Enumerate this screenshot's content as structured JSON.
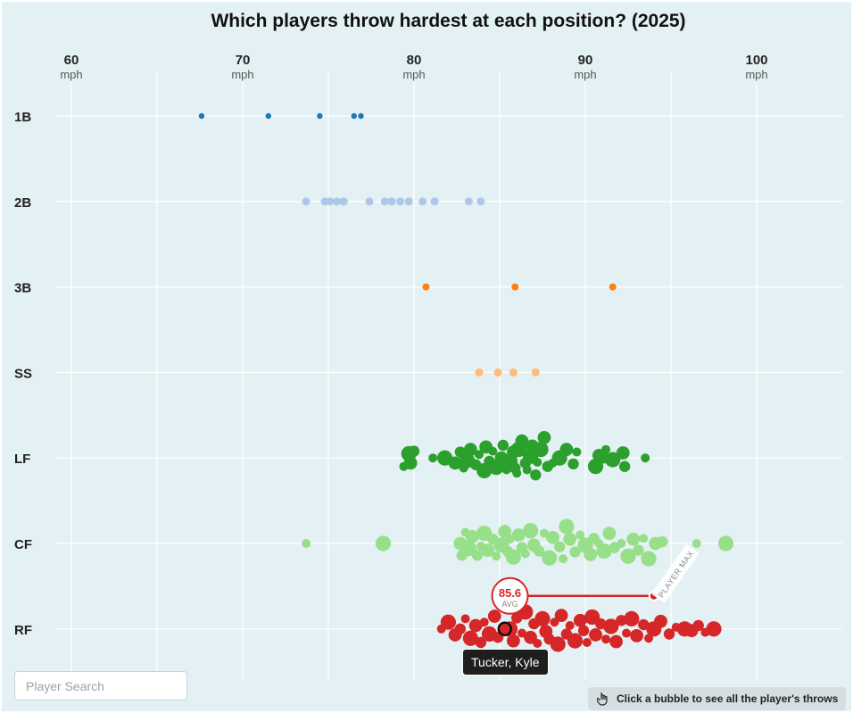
{
  "title": "Which players throw hardest at each position? (2025)",
  "axis_unit": "mph",
  "search": {
    "placeholder": "Player Search"
  },
  "hint": {
    "text": "Click a bubble to see all the player's throws"
  },
  "tooltip": {
    "player": "Tucker, Kyle"
  },
  "avg_badge": {
    "value": "85.6",
    "label": "AVG"
  },
  "max_label": "PLAYER MAX",
  "chart_data": {
    "type": "scatter",
    "subtype": "beeswarm",
    "title": "Which players throw hardest at each position? (2025)",
    "x_ticks": [
      {
        "value": 60,
        "label": "60"
      },
      {
        "value": 70,
        "label": "70"
      },
      {
        "value": 80,
        "label": "80"
      },
      {
        "value": 90,
        "label": "90"
      },
      {
        "value": 100,
        "label": "100"
      }
    ],
    "xlim": [
      59,
      104
    ],
    "categories": [
      "1B",
      "2B",
      "3B",
      "SS",
      "LF",
      "CF",
      "RF"
    ],
    "colors": {
      "1B": "#1f77b4",
      "2B": "#aec7e8",
      "3B": "#ff7f0e",
      "SS": "#ffbb78",
      "LF": "#2ca02c",
      "CF": "#98df8a",
      "RF": "#d62728"
    },
    "series": [
      {
        "name": "1B",
        "values": [
          67.6,
          71.5,
          74.5,
          76.5,
          76.9
        ]
      },
      {
        "name": "2B",
        "values": [
          73.7,
          74.8,
          75.1,
          75.5,
          75.9,
          75.9,
          77.4,
          78.3,
          78.7,
          79.2,
          79.7,
          80.5,
          81.2,
          83.2,
          83.9
        ]
      },
      {
        "name": "3B",
        "values": [
          80.7,
          85.9,
          91.6
        ]
      },
      {
        "name": "SS",
        "values": [
          83.8,
          84.9,
          85.8,
          87.1
        ]
      },
      {
        "name": "LF",
        "values": [
          79.4,
          79.7,
          79.8,
          80.0,
          81.1,
          81.8,
          82.4,
          82.7,
          82.9,
          83.1,
          83.3,
          83.6,
          83.8,
          84.1,
          84.2,
          84.4,
          84.6,
          84.8,
          85.1,
          85.2,
          85.4,
          85.6,
          85.8,
          85.9,
          86.0,
          86.1,
          86.3,
          86.5,
          86.6,
          86.8,
          86.9,
          87.1,
          87.2,
          87.4,
          87.6,
          87.8,
          88.1,
          88.5,
          88.9,
          89.3,
          89.5,
          90.6,
          90.8,
          91.1,
          91.2,
          91.6,
          92.2,
          92.3,
          93.5
        ],
        "y_offsets": [
          0.1,
          -0.05,
          0.06,
          -0.08,
          0.0,
          0.0,
          0.06,
          -0.07,
          0.12,
          0.03,
          -0.1,
          0.08,
          -0.04,
          0.15,
          -0.13,
          0.04,
          -0.08,
          0.11,
          0.0,
          -0.15,
          0.14,
          0.04,
          -0.07,
          0.12,
          0.18,
          -0.1,
          -0.2,
          0.06,
          0.14,
          -0.02,
          -0.14,
          0.2,
          0.05,
          -0.1,
          -0.24,
          0.1,
          0.06,
          0.0,
          -0.1,
          0.07,
          -0.07,
          0.1,
          -0.03,
          0.0,
          -0.1,
          0.02,
          -0.06,
          0.1,
          0.0
        ]
      },
      {
        "name": "CF",
        "values": [
          73.7,
          78.2,
          82.7,
          82.8,
          83.0,
          83.2,
          83.4,
          83.7,
          83.9,
          84.1,
          84.3,
          84.6,
          84.8,
          85.1,
          85.3,
          85.5,
          85.6,
          85.8,
          86.1,
          86.3,
          86.5,
          86.8,
          87.0,
          87.3,
          87.6,
          87.9,
          88.1,
          88.5,
          88.7,
          88.9,
          89.1,
          89.4,
          89.7,
          90.0,
          90.3,
          90.5,
          90.8,
          91.1,
          91.4,
          91.7,
          92.1,
          92.5,
          92.8,
          93.1,
          93.4,
          93.7,
          94.1,
          94.5,
          96.5,
          98.2
        ],
        "y_offsets": [
          0.0,
          0.0,
          0.0,
          0.14,
          -0.13,
          0.06,
          -0.08,
          0.14,
          0.03,
          -0.12,
          0.08,
          -0.05,
          0.15,
          0.02,
          -0.14,
          0.1,
          -0.05,
          0.16,
          -0.1,
          0.05,
          0.12,
          -0.15,
          0.02,
          0.09,
          -0.12,
          0.17,
          -0.07,
          0.04,
          0.18,
          -0.2,
          -0.05,
          0.1,
          -0.1,
          0.02,
          0.13,
          -0.06,
          0.0,
          0.09,
          -0.12,
          0.05,
          0.0,
          0.15,
          -0.05,
          0.08,
          -0.06,
          0.18,
          0.0,
          -0.02,
          0.0,
          0.0
        ]
      },
      {
        "name": "RF",
        "values": [
          81.6,
          82.0,
          82.4,
          82.7,
          83.0,
          83.3,
          83.6,
          83.9,
          84.1,
          84.4,
          84.7,
          84.9,
          85.2,
          85.6,
          85.8,
          86.0,
          86.3,
          86.5,
          86.8,
          87.0,
          87.2,
          87.5,
          87.7,
          87.9,
          88.2,
          88.4,
          88.6,
          88.9,
          89.1,
          89.4,
          89.7,
          89.9,
          90.1,
          90.4,
          90.6,
          90.9,
          91.2,
          91.5,
          91.8,
          92.1,
          92.4,
          92.7,
          93.0,
          93.4,
          93.7,
          94.0,
          94.4,
          94.9,
          95.3,
          95.8,
          96.2,
          96.6,
          97.0,
          97.5
        ],
        "y_offsets": [
          0.0,
          -0.08,
          0.07,
          0.0,
          -0.12,
          0.11,
          -0.04,
          0.16,
          -0.08,
          0.06,
          -0.15,
          0.1,
          -0.03,
          0.0,
          0.14,
          -0.13,
          0.05,
          -0.2,
          0.1,
          -0.06,
          0.17,
          -0.12,
          0.03,
          0.12,
          -0.08,
          0.18,
          -0.16,
          0.06,
          -0.04,
          0.14,
          -0.1,
          0.02,
          0.16,
          -0.14,
          0.07,
          -0.06,
          0.12,
          -0.03,
          0.15,
          -0.1,
          0.05,
          -0.12,
          0.08,
          -0.05,
          0.11,
          0.0,
          -0.09,
          0.06,
          -0.02,
          0.0,
          0.02,
          -0.04,
          0.04,
          0.0
        ]
      }
    ],
    "highlight": {
      "position": "RF",
      "player": "Tucker, Kyle",
      "throw_mph": 85.3,
      "avg_mph": 85.6,
      "max_mph": 94.0
    }
  }
}
